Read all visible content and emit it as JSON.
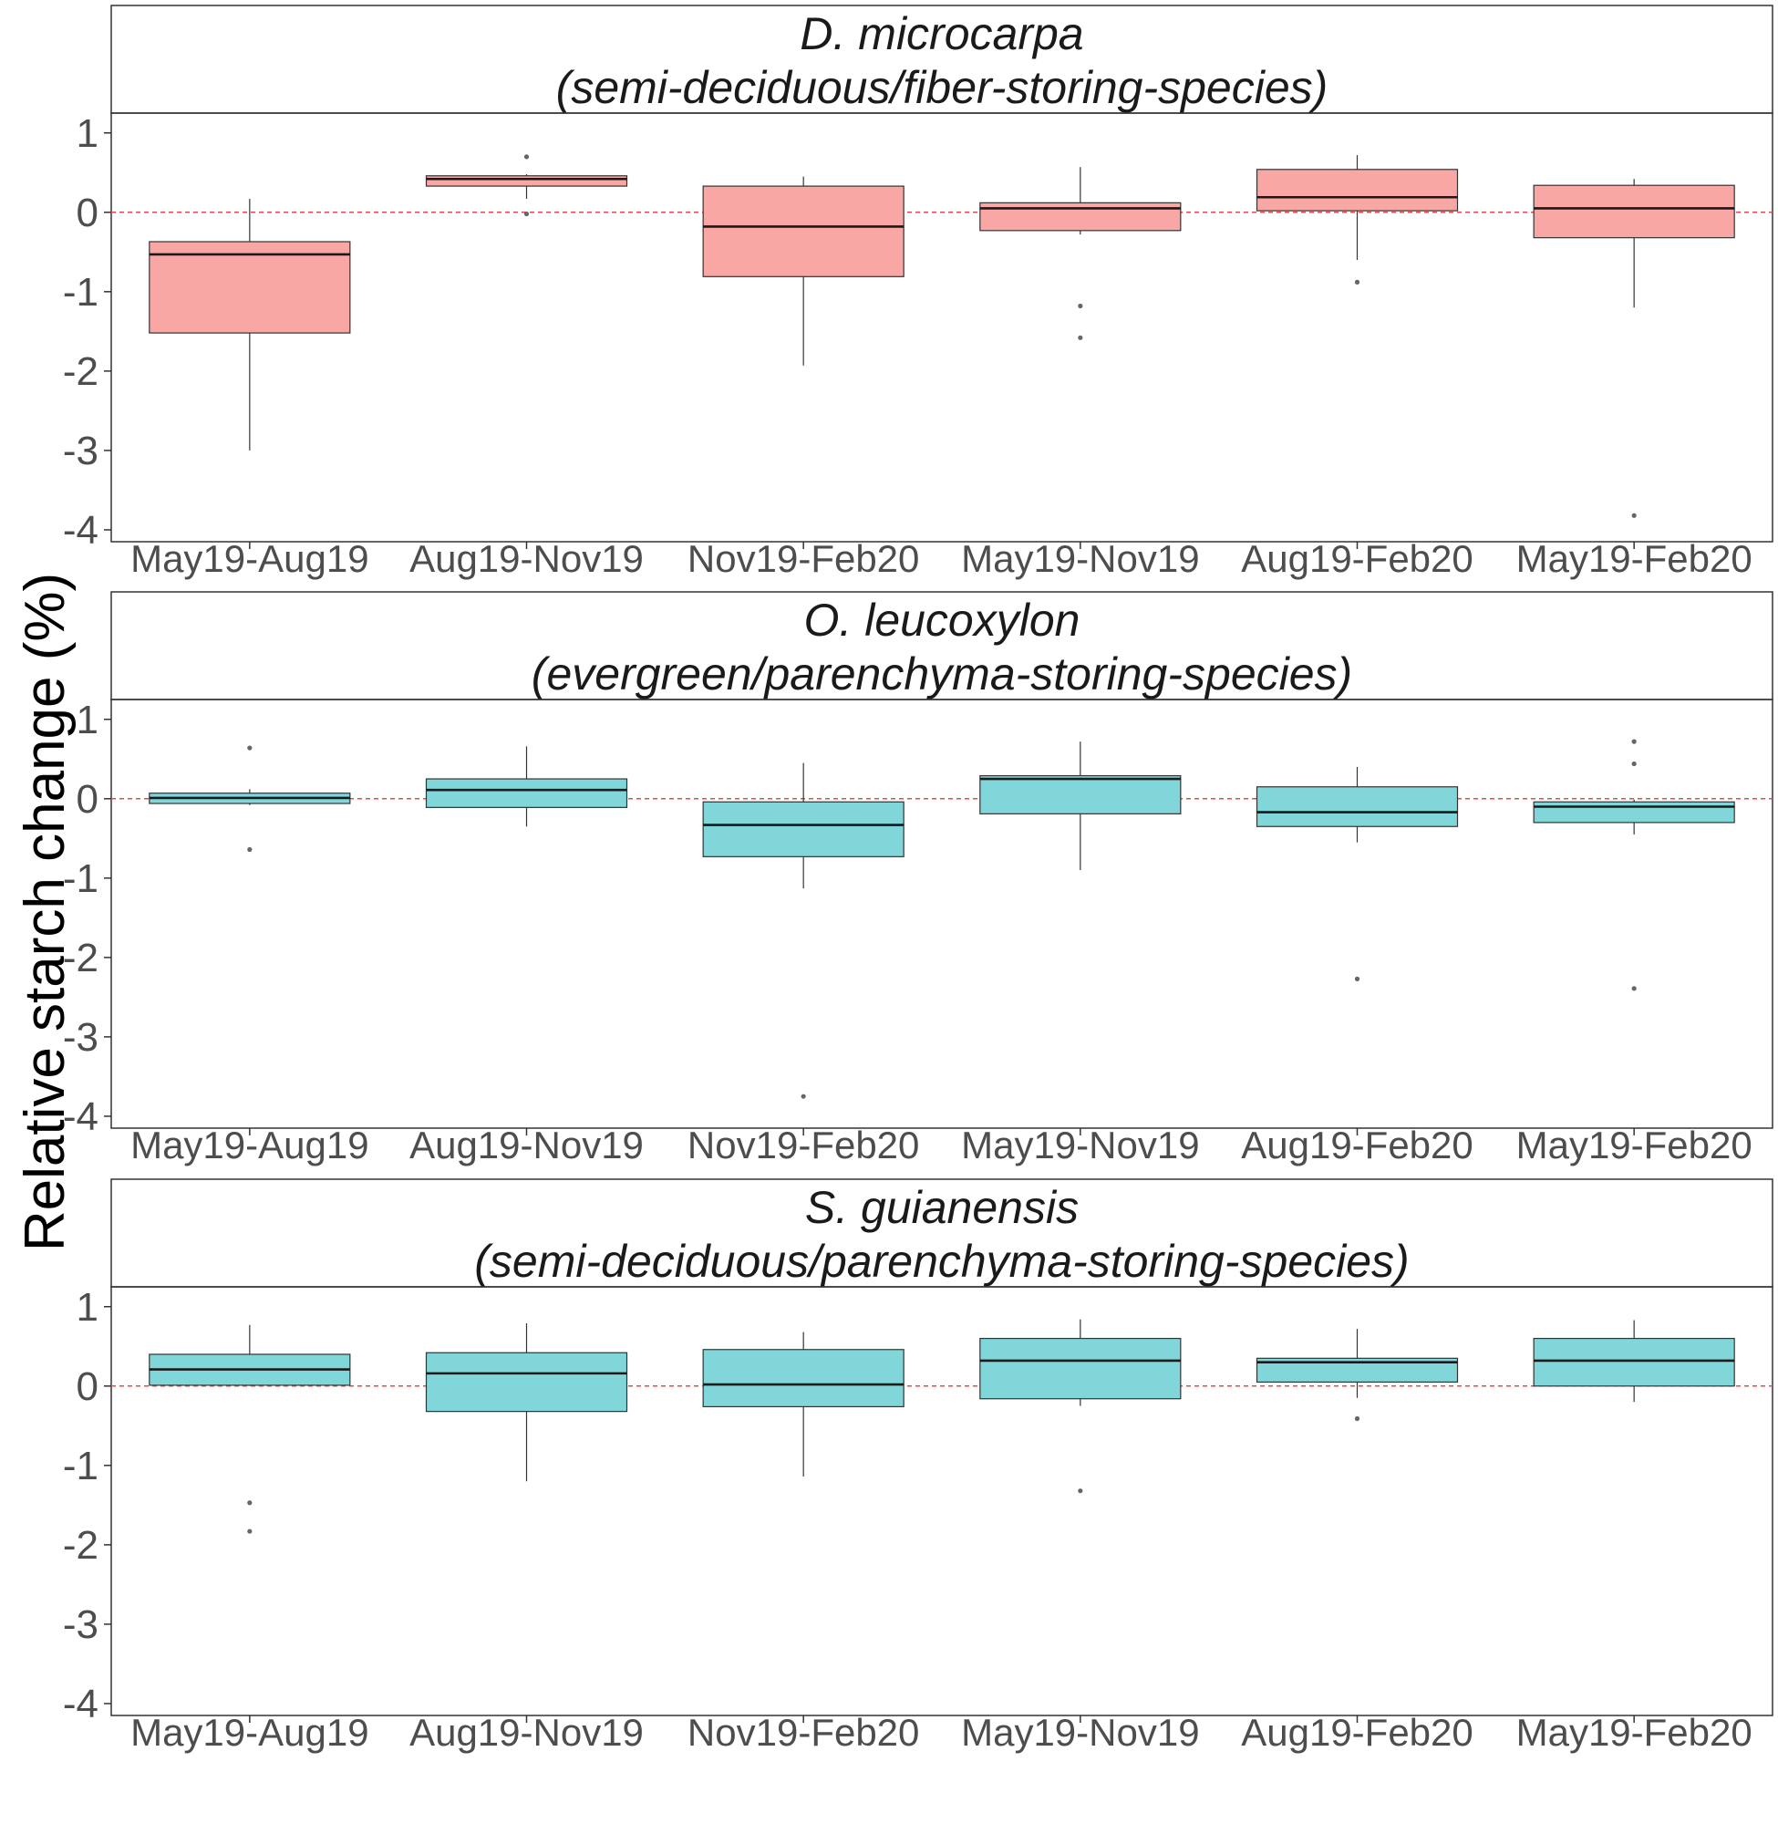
{
  "y_axis_label": "Relative starch change (%)",
  "chart_data": {
    "type": "boxplot",
    "ylabel": "Relative starch change (%)",
    "xlabel": "",
    "categories": [
      "May19-Aug19",
      "Aug19-Nov19",
      "Nov19-Feb20",
      "May19-Nov19",
      "Aug19-Feb20",
      "May19-Feb20"
    ],
    "yticks": [
      1,
      0,
      -1,
      -2,
      -3,
      -4
    ],
    "ytick_labels": [
      "1",
      "0",
      "-1",
      "-2",
      "-3",
      "-4"
    ],
    "ylim": [
      -4.15,
      1.25
    ],
    "reference_line": {
      "y": 0,
      "style": "dashed",
      "color": "#e8474c"
    },
    "grid": false,
    "legend": "none",
    "panels": [
      {
        "title_line1": "D. microcarpa",
        "title_line2": "(semi-deciduous/fiber-storing-species)",
        "fill": "#f8a7a4",
        "boxes": [
          {
            "category": "May19-Aug19",
            "whisker_low": -3.0,
            "q1": -1.52,
            "median": -0.53,
            "q3": -0.37,
            "whisker_high": 0.17,
            "outliers": []
          },
          {
            "category": "Aug19-Nov19",
            "whisker_low": 0.17,
            "q1": 0.33,
            "median": 0.42,
            "q3": 0.46,
            "whisker_high": 0.48,
            "outliers": [
              0.7,
              -0.02
            ]
          },
          {
            "category": "Nov19-Feb20",
            "whisker_low": -1.93,
            "q1": -0.81,
            "median": -0.18,
            "q3": 0.33,
            "whisker_high": 0.45,
            "outliers": []
          },
          {
            "category": "May19-Nov19",
            "whisker_low": -0.28,
            "q1": -0.23,
            "median": 0.05,
            "q3": 0.12,
            "whisker_high": 0.57,
            "outliers": [
              -1.18,
              -1.58
            ]
          },
          {
            "category": "Aug19-Feb20",
            "whisker_low": -0.6,
            "q1": 0.02,
            "median": 0.19,
            "q3": 0.54,
            "whisker_high": 0.72,
            "outliers": [
              -0.88
            ]
          },
          {
            "category": "May19-Feb20",
            "whisker_low": -1.2,
            "q1": -0.32,
            "median": 0.05,
            "q3": 0.34,
            "whisker_high": 0.42,
            "outliers": [
              -3.82
            ]
          }
        ]
      },
      {
        "title_line1": "O. leucoxylon",
        "title_line2": "(evergreen/parenchyma-storing-species)",
        "fill": "#80d6d9",
        "boxes": [
          {
            "category": "May19-Aug19",
            "whisker_low": -0.08,
            "q1": -0.06,
            "median": 0.01,
            "q3": 0.07,
            "whisker_high": 0.12,
            "outliers": [
              0.64,
              -0.64
            ]
          },
          {
            "category": "Aug19-Nov19",
            "whisker_low": -0.35,
            "q1": -0.11,
            "median": 0.11,
            "q3": 0.25,
            "whisker_high": 0.66,
            "outliers": []
          },
          {
            "category": "Nov19-Feb20",
            "whisker_low": -1.13,
            "q1": -0.73,
            "median": -0.33,
            "q3": -0.04,
            "whisker_high": 0.45,
            "outliers": [
              -3.75
            ]
          },
          {
            "category": "May19-Nov19",
            "whisker_low": -0.9,
            "q1": -0.19,
            "median": 0.25,
            "q3": 0.29,
            "whisker_high": 0.72,
            "outliers": []
          },
          {
            "category": "Aug19-Feb20",
            "whisker_low": -0.55,
            "q1": -0.35,
            "median": -0.17,
            "q3": 0.15,
            "whisker_high": 0.4,
            "outliers": [
              -2.27
            ]
          },
          {
            "category": "May19-Feb20",
            "whisker_low": -0.45,
            "q1": -0.3,
            "median": -0.1,
            "q3": -0.04,
            "whisker_high": -0.01,
            "outliers": [
              0.72,
              0.44,
              -2.39
            ]
          }
        ]
      },
      {
        "title_line1": "S. guianensis",
        "title_line2": "(semi-deciduous/parenchyma-storing-species)",
        "fill": "#80d6d9",
        "boxes": [
          {
            "category": "May19-Aug19",
            "whisker_low": 0.0,
            "q1": 0.01,
            "median": 0.21,
            "q3": 0.4,
            "whisker_high": 0.77,
            "outliers": [
              -1.47,
              -1.83
            ]
          },
          {
            "category": "Aug19-Nov19",
            "whisker_low": -1.2,
            "q1": -0.32,
            "median": 0.16,
            "q3": 0.42,
            "whisker_high": 0.79,
            "outliers": []
          },
          {
            "category": "Nov19-Feb20",
            "whisker_low": -1.14,
            "q1": -0.26,
            "median": 0.02,
            "q3": 0.46,
            "whisker_high": 0.68,
            "outliers": []
          },
          {
            "category": "May19-Nov19",
            "whisker_low": -0.25,
            "q1": -0.16,
            "median": 0.32,
            "q3": 0.6,
            "whisker_high": 0.84,
            "outliers": [
              -1.32
            ]
          },
          {
            "category": "Aug19-Feb20",
            "whisker_low": -0.15,
            "q1": 0.05,
            "median": 0.3,
            "q3": 0.35,
            "whisker_high": 0.72,
            "outliers": [
              -0.41
            ]
          },
          {
            "category": "May19-Feb20",
            "whisker_low": -0.2,
            "q1": 0.0,
            "median": 0.32,
            "q3": 0.6,
            "whisker_high": 0.83,
            "outliers": []
          }
        ]
      }
    ]
  }
}
